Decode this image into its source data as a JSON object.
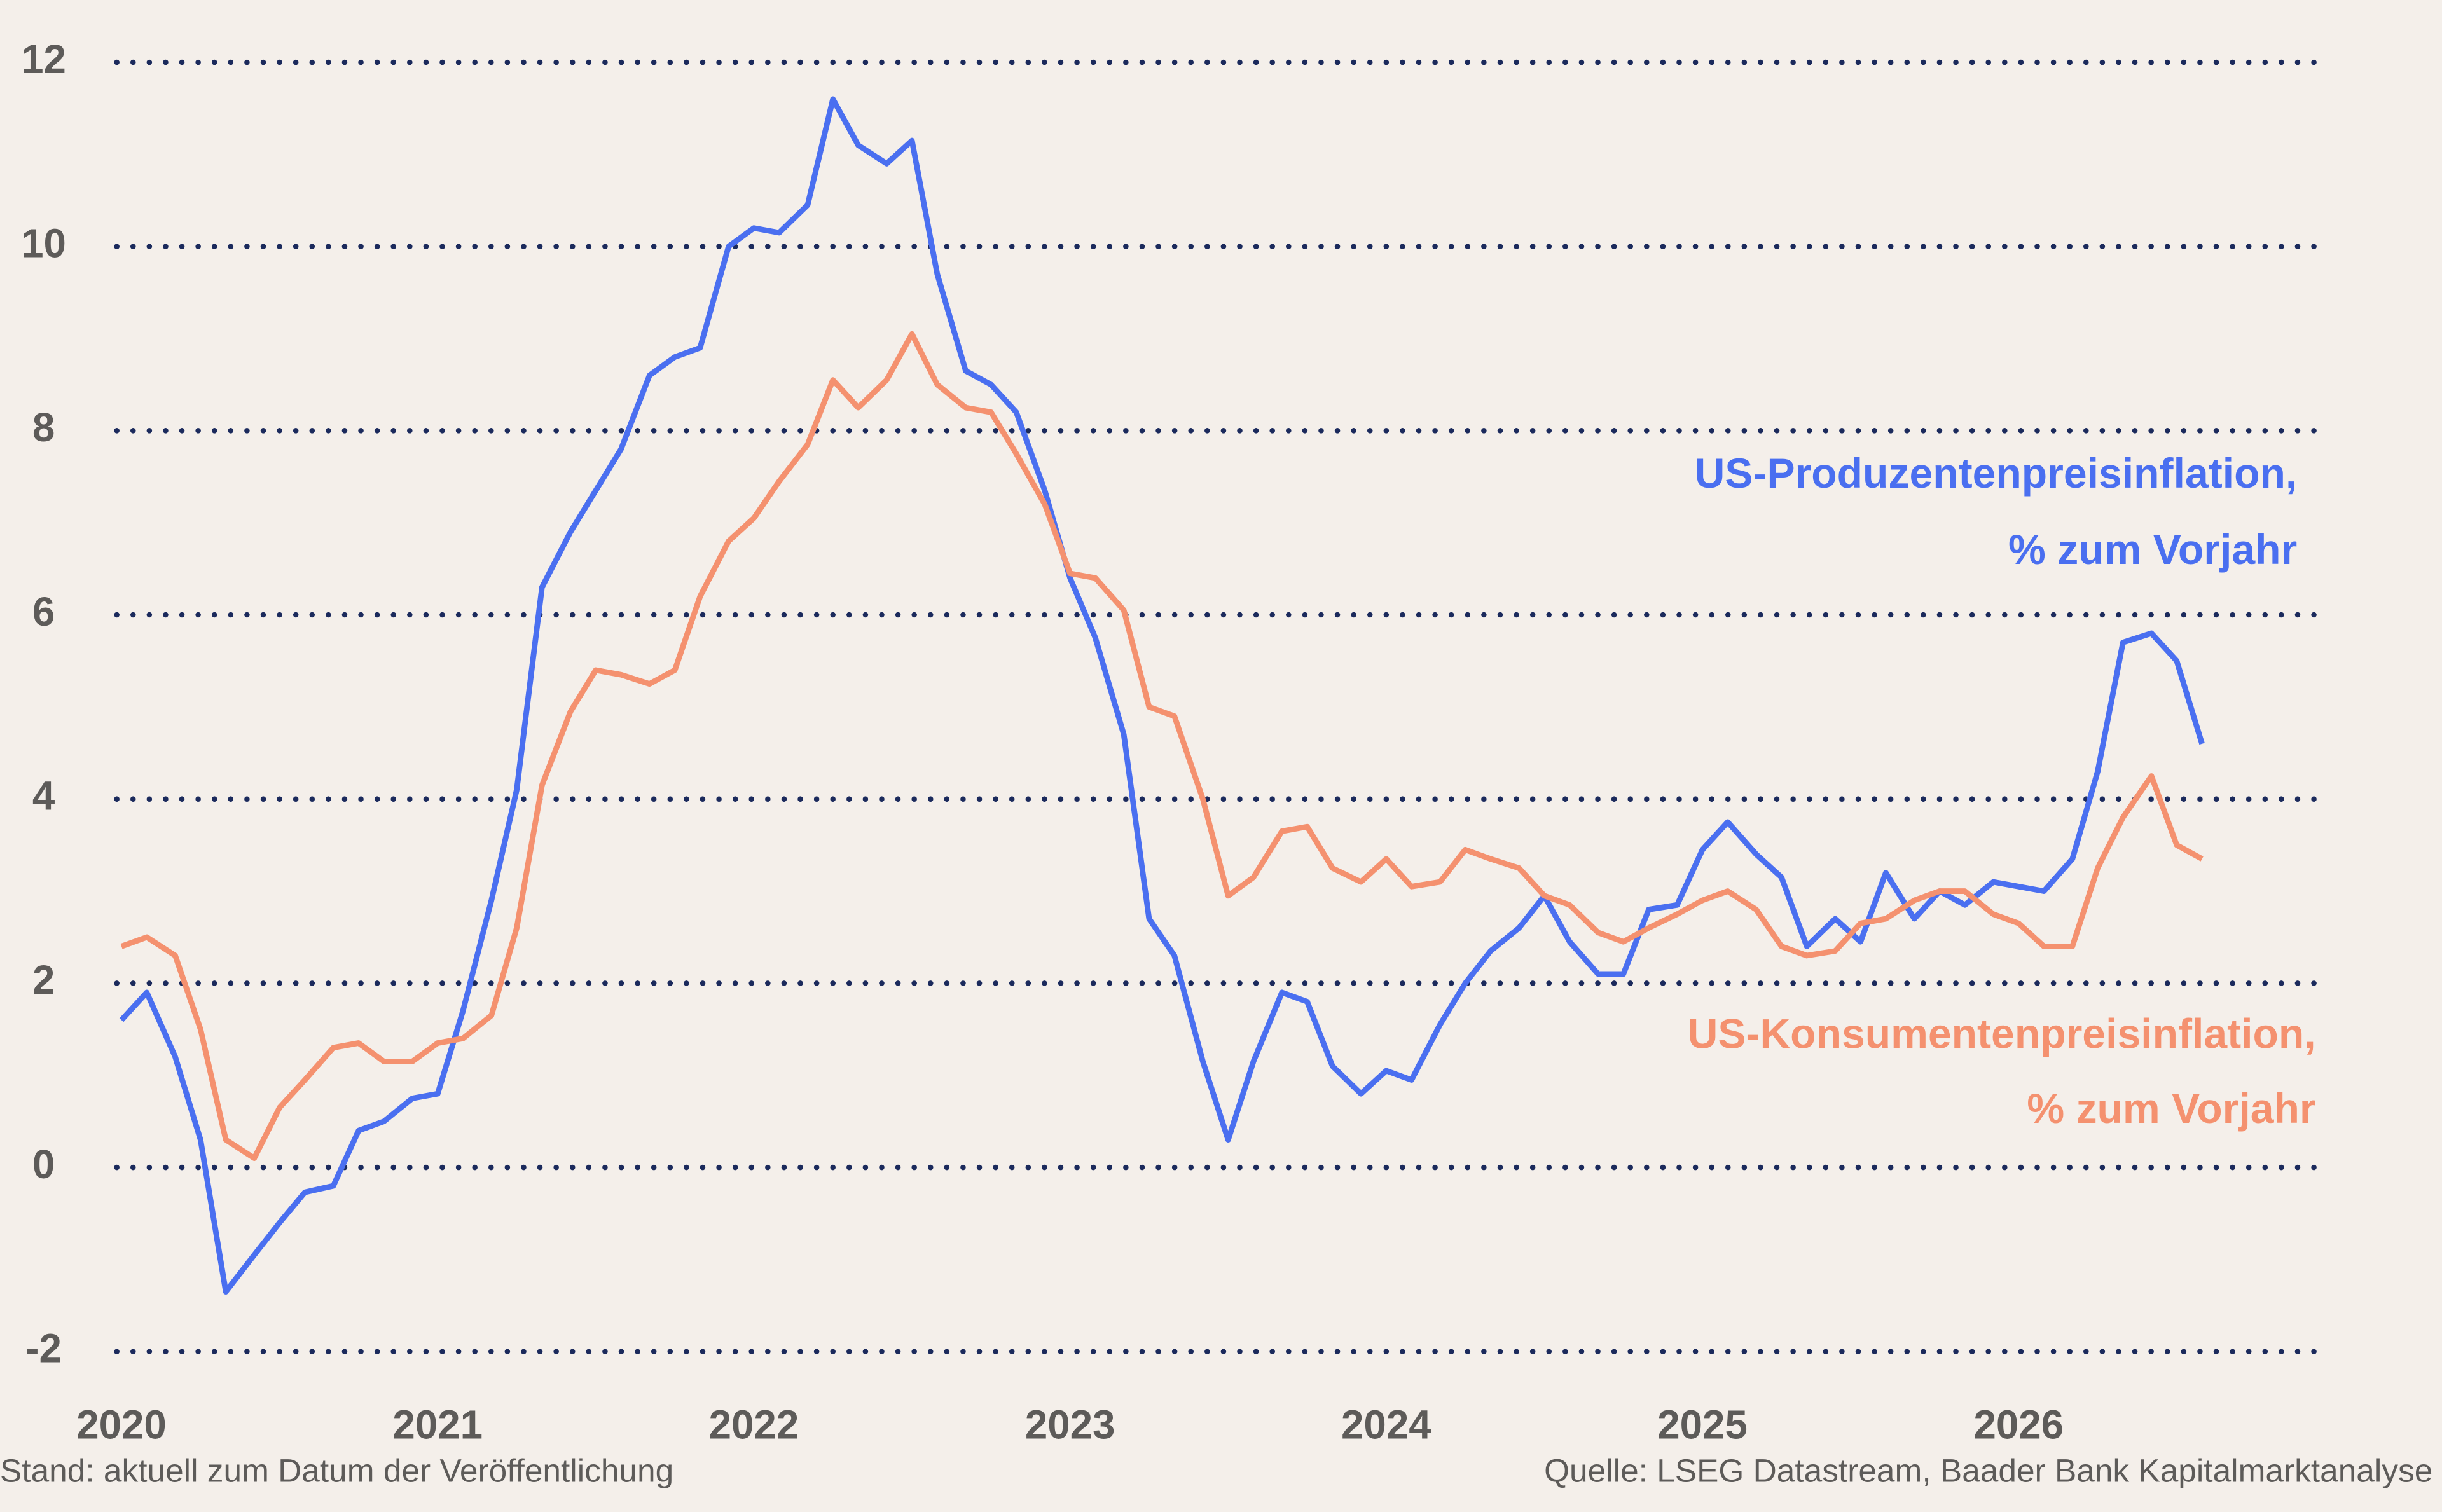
{
  "chart_data": {
    "type": "line",
    "x": [
      2020,
      2020.08,
      2020.17,
      2020.25,
      2020.33,
      2020.42,
      2020.5,
      2020.58,
      2020.67,
      2020.75,
      2020.83,
      2020.92,
      2021,
      2021.08,
      2021.17,
      2021.25,
      2021.33,
      2021.42,
      2021.5,
      2021.58,
      2021.67,
      2021.75,
      2021.83,
      2021.92,
      2022,
      2022.08,
      2022.17,
      2022.25,
      2022.33,
      2022.42,
      2022.5,
      2022.58,
      2022.67,
      2022.75,
      2022.83,
      2022.92,
      2023,
      2023.08,
      2023.17,
      2023.25,
      2023.33,
      2023.42,
      2023.5,
      2023.58,
      2023.67,
      2023.75,
      2023.83,
      2023.92,
      2024,
      2024.08,
      2024.17,
      2024.25,
      2024.33,
      2024.42,
      2024.5,
      2024.58,
      2024.67,
      2024.75,
      2024.83,
      2024.92,
      2025,
      2025.08,
      2025.17,
      2025.25,
      2025.33,
      2025.42,
      2025.5,
      2025.58,
      2025.67,
      2025.75,
      2025.83,
      2025.92,
      2026,
      2026.08,
      2026.17,
      2026.25,
      2026.33,
      2026.42,
      2026.5,
      2026.58
    ],
    "series": [
      {
        "name": "US-Produzentenpreisinflation,",
        "unit": "% zum Vorjahr",
        "color": "#4a6ff0",
        "values": [
          1.6,
          1.9,
          1.2,
          0.3,
          -1.35,
          -0.95,
          -0.6,
          -0.27,
          -0.2,
          0.4,
          0.5,
          0.75,
          0.8,
          1.7,
          2.9,
          4.1,
          6.3,
          6.9,
          7.35,
          7.8,
          8.6,
          8.8,
          8.9,
          10.0,
          10.2,
          10.15,
          10.45,
          11.6,
          11.1,
          10.9,
          11.15,
          9.7,
          8.65,
          8.5,
          8.2,
          7.35,
          6.4,
          5.75,
          4.7,
          2.7,
          2.3,
          1.15,
          0.3,
          1.15,
          1.9,
          1.8,
          1.1,
          0.8,
          1.05,
          0.95,
          1.55,
          2.0,
          2.35,
          2.6,
          2.95,
          2.45,
          2.1,
          2.1,
          2.8,
          2.85,
          3.45,
          3.75,
          3.4,
          3.15,
          2.4,
          2.7,
          2.45,
          3.2,
          2.7,
          3.0,
          2.85,
          3.1,
          3.05,
          3.0,
          3.35,
          4.3,
          5.7,
          5.8,
          5.5,
          4.6
        ]
      },
      {
        "name": "US-Konsumentenpreisinflation,",
        "unit": "% zum Vorjahr",
        "color": "#f4916f",
        "values": [
          2.4,
          2.5,
          2.3,
          1.5,
          0.3,
          0.1,
          0.65,
          0.95,
          1.3,
          1.35,
          1.15,
          1.15,
          1.35,
          1.4,
          1.65,
          2.6,
          4.15,
          4.95,
          5.4,
          5.35,
          5.25,
          5.4,
          6.2,
          6.8,
          7.05,
          7.45,
          7.85,
          8.55,
          8.25,
          8.55,
          9.05,
          8.5,
          8.25,
          8.2,
          7.75,
          7.2,
          6.45,
          6.4,
          6.05,
          5.0,
          4.9,
          4.0,
          2.95,
          3.15,
          3.65,
          3.7,
          3.25,
          3.1,
          3.35,
          3.05,
          3.1,
          3.45,
          3.35,
          3.25,
          2.95,
          2.85,
          2.55,
          2.45,
          2.6,
          2.75,
          2.9,
          3.0,
          2.8,
          2.4,
          2.3,
          2.35,
          2.65,
          2.7,
          2.9,
          3.0,
          3.0,
          2.75,
          2.65,
          2.4,
          2.4,
          3.25,
          3.8,
          4.25,
          3.5,
          3.35
        ]
      }
    ],
    "xlim": [
      2020,
      2026.94
    ],
    "xticks": [
      2020,
      2021,
      2022,
      2023,
      2024,
      2025,
      2026
    ],
    "ylim": [
      -2,
      12
    ],
    "yticks": [
      -2,
      0,
      2,
      4,
      6,
      8,
      10,
      12
    ],
    "grid": true,
    "grid_color": "#1b2a5c",
    "footnote": "Stand: aktuell zum Datum der Veröffentlichung",
    "source": "Quelle: LSEG Datastream, Baader Bank Kapitalmarktanalyse"
  }
}
